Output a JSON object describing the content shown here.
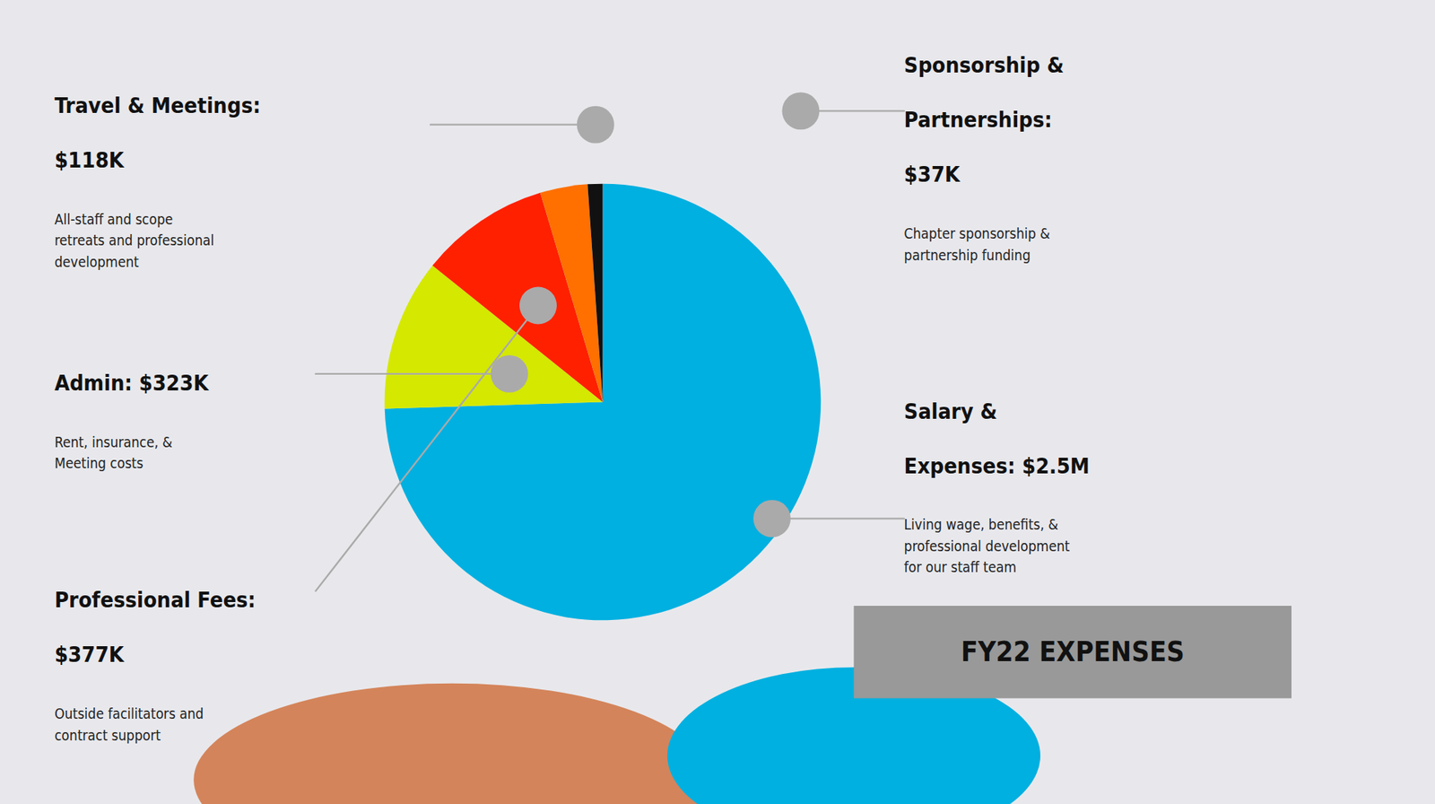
{
  "chart_data": {
    "type": "pie",
    "title": "FY22 EXPENSES",
    "values": [
      2500,
      377,
      323,
      118,
      37
    ],
    "colors": [
      "#00b0e0",
      "#d4e800",
      "#ff2000",
      "#ff7000",
      "#111111"
    ],
    "annotations": [
      {
        "title": "Travel & Meetings:\n$118K",
        "text": "All-staff and scope\nretreats and professional\ndevelopment"
      },
      {
        "title": "Admin: $323K",
        "text": "Rent, insurance, &\nMeeting costs"
      },
      {
        "title": "Professional Fees:\n$377K",
        "text": "Outside facilitators and\ncontract support"
      },
      {
        "title": "Sponsorship &\nPartnerships:\n$37K",
        "text": "Chapter sponsorship &\npartnership funding"
      },
      {
        "title": "Salary &\nExpenses: $2.5M",
        "text": "Living wage, benefits, &\nprofessional development\nfor our staff team"
      }
    ]
  }
}
